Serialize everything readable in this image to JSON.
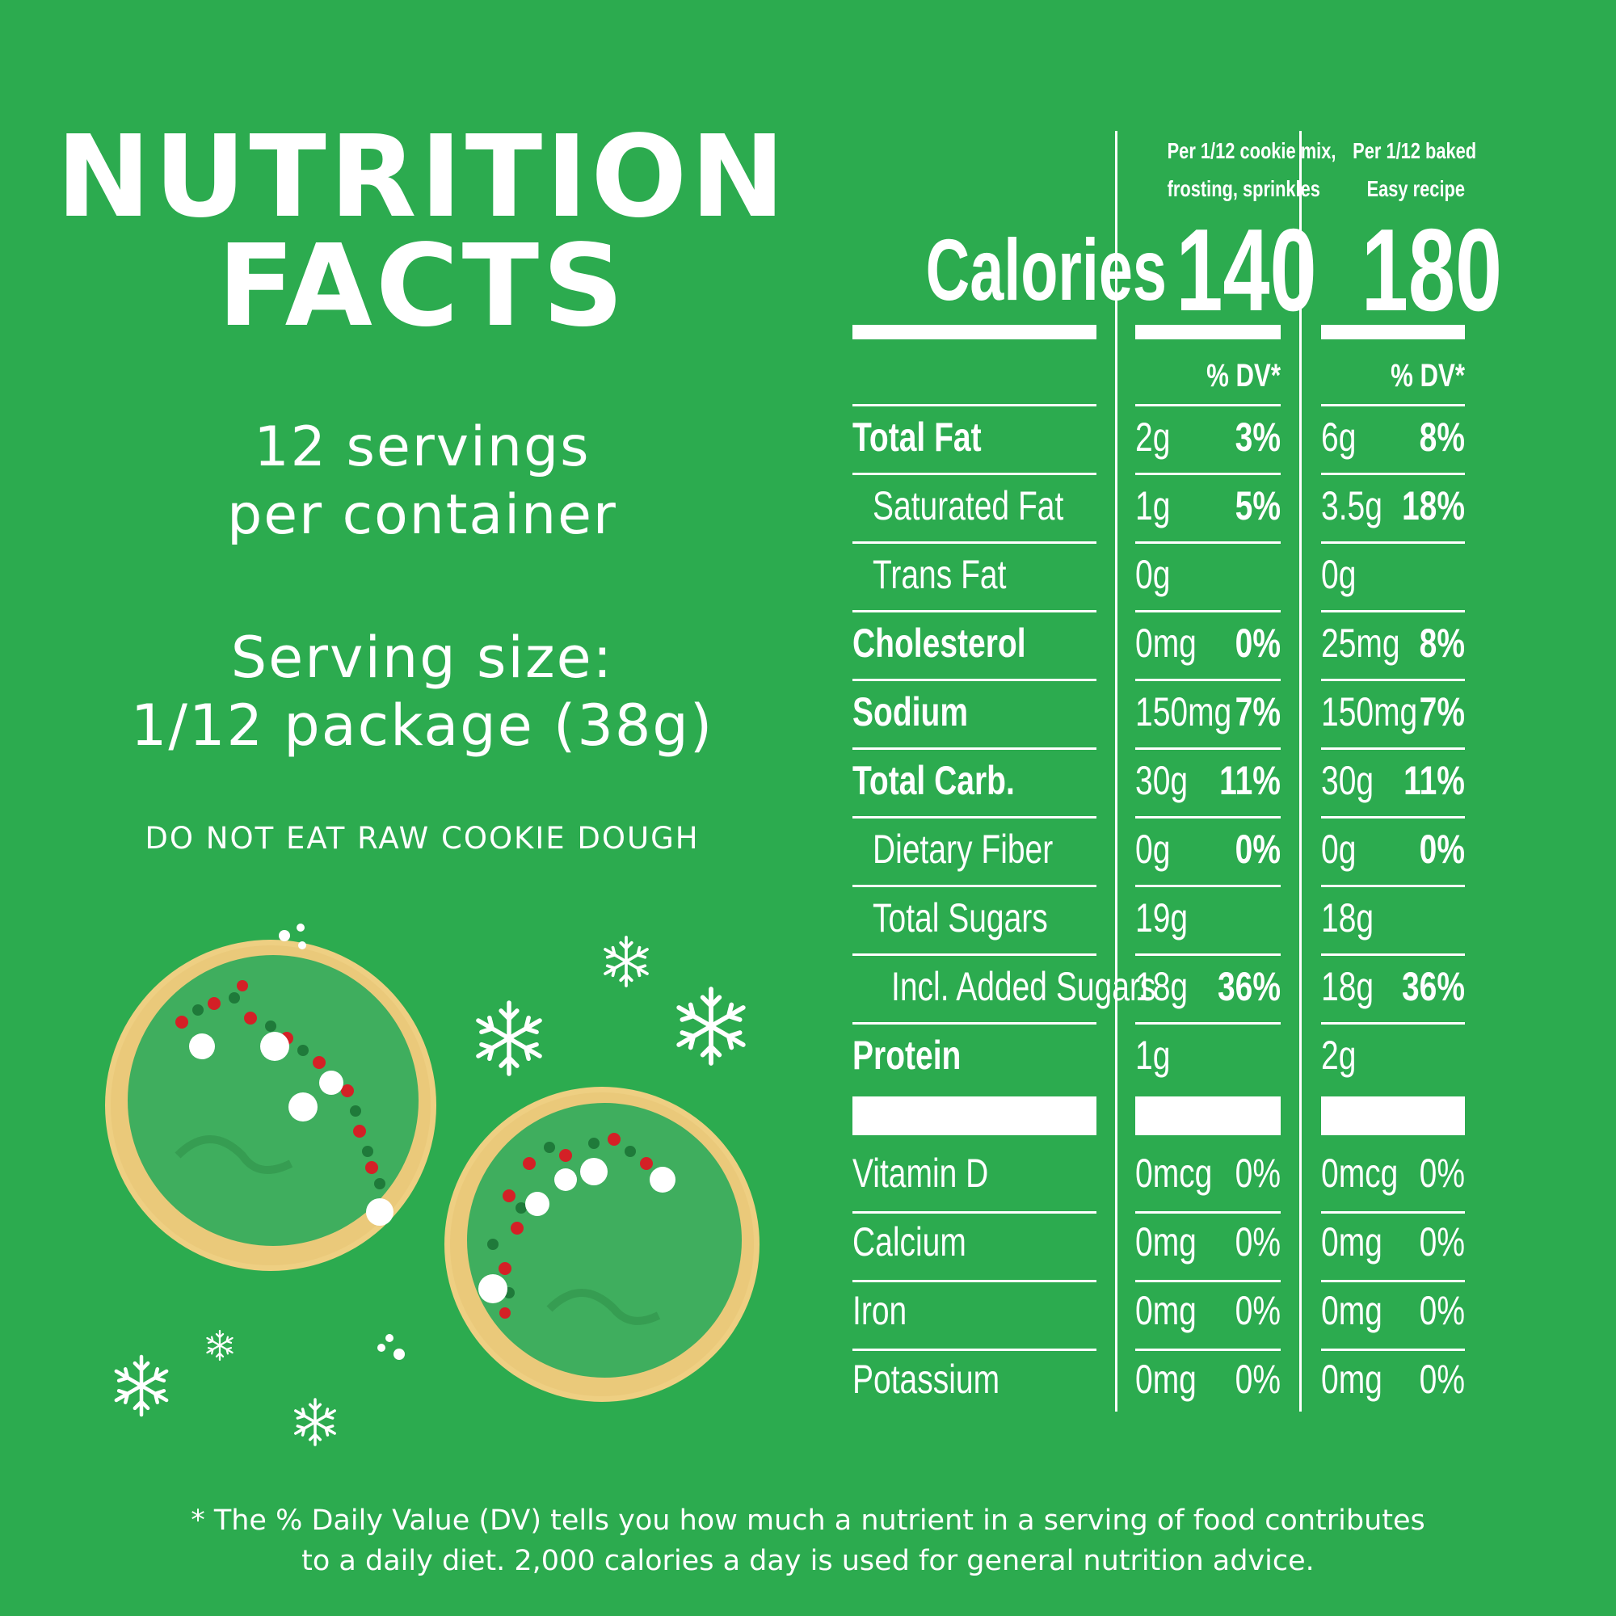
{
  "page": {
    "background": "#2cab4f",
    "text_color": "#ffffff"
  },
  "left": {
    "title_line1": "NUTRITION",
    "title_line2": "FACTS",
    "servings_line1": "12 servings",
    "servings_line2": "per container",
    "serving_size_line1": "Serving size:",
    "serving_size_line2": "1/12 package (38g)",
    "warning": "DO NOT EAT RAW COOKIE DOUGH"
  },
  "columns": [
    {
      "header_line1": "Per 1/12 cookie mix,",
      "header_line2": "frosting, sprinkles",
      "calories": "140",
      "dv_header": "% DV*"
    },
    {
      "header_line1": "Per 1/12 baked",
      "header_line2": "Easy recipe",
      "calories": "180",
      "dv_header": "% DV*"
    }
  ],
  "calories_label": "Calories",
  "nutrients": [
    {
      "label": "Total Fat",
      "bold": true,
      "indent": 0,
      "c1_amount": "2g",
      "c1_dv": "3%",
      "c2_amount": "6g",
      "c2_dv": "8%"
    },
    {
      "label": "Saturated Fat",
      "bold": false,
      "indent": 1,
      "c1_amount": "1g",
      "c1_dv": "5%",
      "c2_amount": "3.5g",
      "c2_dv": "18%"
    },
    {
      "label": "Trans Fat",
      "bold": false,
      "indent": 1,
      "c1_amount": "0g",
      "c1_dv": "",
      "c2_amount": "0g",
      "c2_dv": ""
    },
    {
      "label": "Cholesterol",
      "bold": true,
      "indent": 0,
      "c1_amount": "0mg",
      "c1_dv": "0%",
      "c2_amount": "25mg",
      "c2_dv": "8%"
    },
    {
      "label": "Sodium",
      "bold": true,
      "indent": 0,
      "c1_amount": "150mg",
      "c1_dv": "7%",
      "c2_amount": "150mg",
      "c2_dv": "7%"
    },
    {
      "label": "Total Carb.",
      "bold": true,
      "indent": 0,
      "c1_amount": "30g",
      "c1_dv": "11%",
      "c2_amount": "30g",
      "c2_dv": "11%"
    },
    {
      "label": "Dietary Fiber",
      "bold": false,
      "indent": 1,
      "c1_amount": "0g",
      "c1_dv": "0%",
      "c2_amount": "0g",
      "c2_dv": "0%"
    },
    {
      "label": "Total Sugars",
      "bold": false,
      "indent": 1,
      "c1_amount": "19g",
      "c1_dv": "",
      "c2_amount": "18g",
      "c2_dv": ""
    },
    {
      "label": "Incl. Added Sugars",
      "bold": false,
      "indent": 2,
      "c1_amount": "18g",
      "c1_dv": "36%",
      "c2_amount": "18g",
      "c2_dv": "36%"
    },
    {
      "label": "Protein",
      "bold": true,
      "indent": 0,
      "c1_amount": "1g",
      "c1_dv": "",
      "c2_amount": "2g",
      "c2_dv": ""
    }
  ],
  "vitamins": [
    {
      "label": "Vitamin D",
      "c1_amount": "0mcg",
      "c1_dv": "0%",
      "c2_amount": "0mcg",
      "c2_dv": "0%"
    },
    {
      "label": "Calcium",
      "c1_amount": "0mg",
      "c1_dv": "0%",
      "c2_amount": "0mg",
      "c2_dv": "0%"
    },
    {
      "label": "Iron",
      "c1_amount": "0mg",
      "c1_dv": "0%",
      "c2_amount": "0mg",
      "c2_dv": "0%"
    },
    {
      "label": "Potassium",
      "c1_amount": "0mg",
      "c1_dv": "0%",
      "c2_amount": "0mg",
      "c2_dv": "0%"
    }
  ],
  "footnote_line1": "* The % Daily Value (DV) tells you how much a nutrient in a serving of food contributes",
  "footnote_line2": "to a daily diet. 2,000 calories a day is used for general nutrition advice.",
  "illustration": {
    "cookie_dough_color": "#eecf82",
    "frosting_color": "#3fae5e",
    "sprinkle_red": "#d42026",
    "sprinkle_green": "#1f7a3a",
    "decoration_icons": [
      "snowflake-icon",
      "sugar-dot-icon"
    ]
  }
}
